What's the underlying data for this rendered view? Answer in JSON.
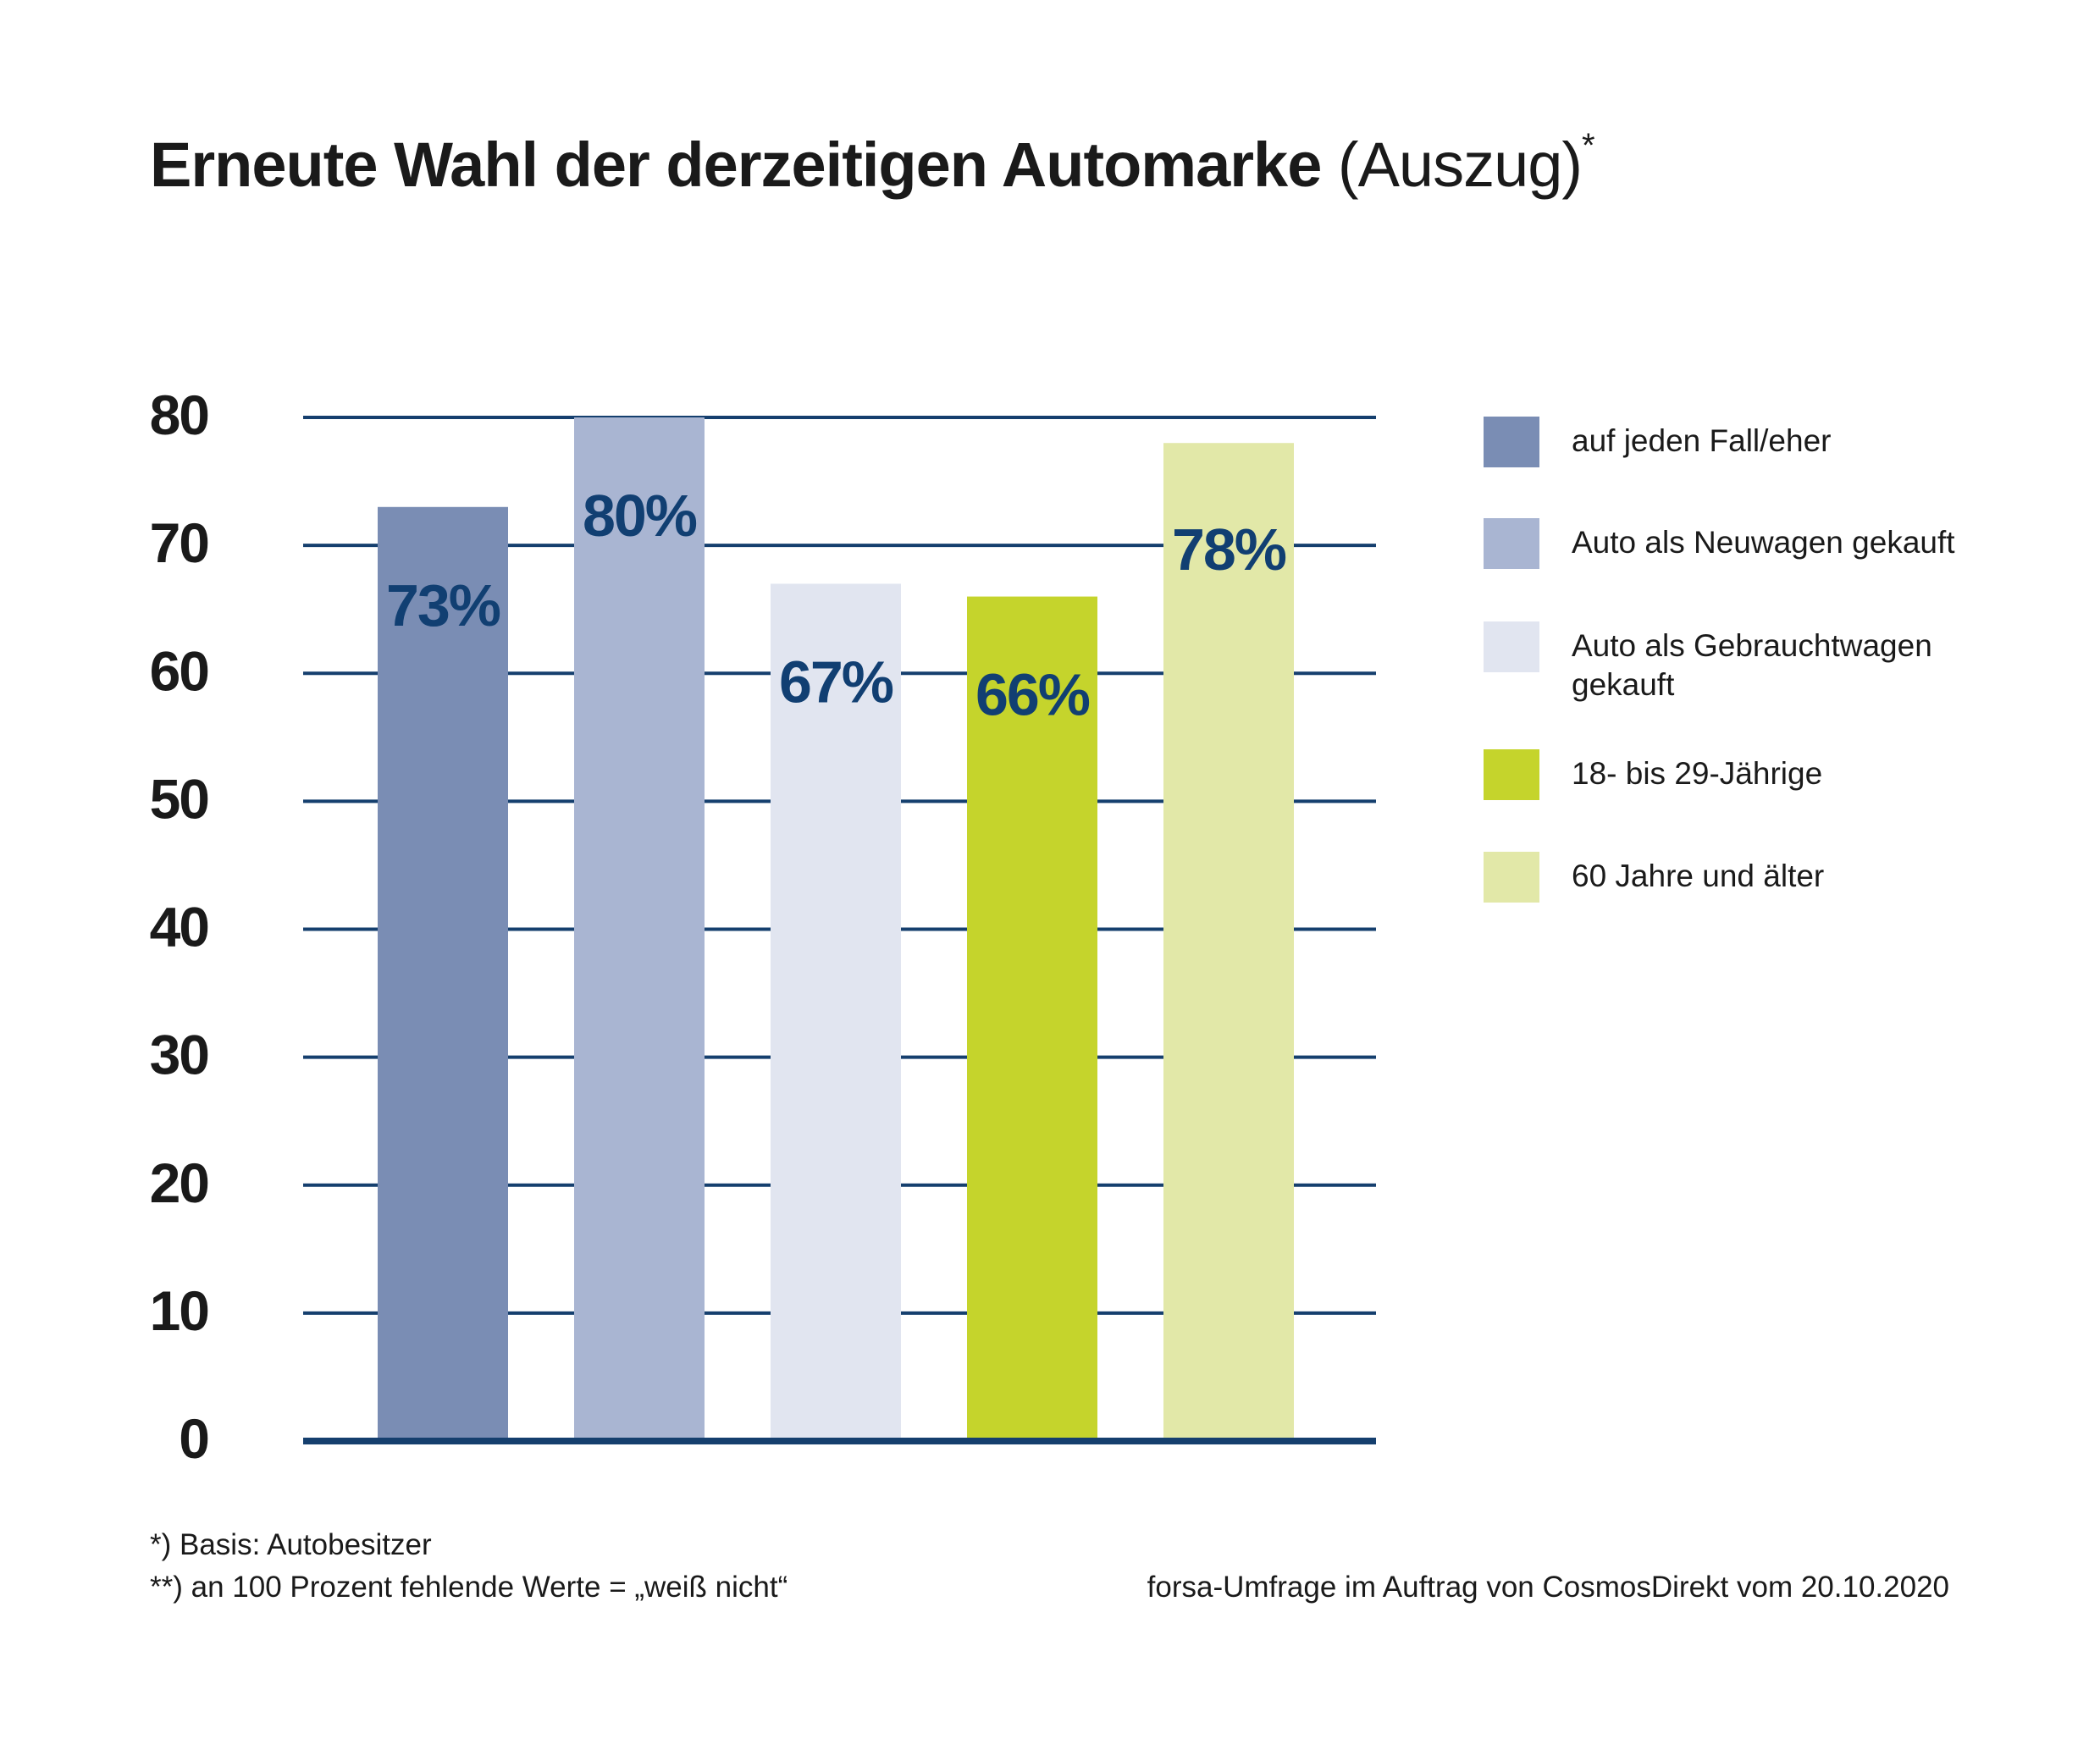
{
  "title": {
    "main": "Erneute Wahl der derzeitigen Automarke",
    "sub": "(Auszug)",
    "star": "*"
  },
  "chart_data": {
    "type": "bar",
    "y_ticks": [
      "80",
      "70",
      "60",
      "50",
      "40",
      "30",
      "20",
      "10",
      "0"
    ],
    "ylim": [
      0,
      80
    ],
    "grid": true,
    "legend_position": "right",
    "categories": [
      "auf jeden Fall/eher",
      "Auto als Neuwagen gekauft",
      "Auto als Gebrauchtwagen gekauft",
      "18- bis 29-Jährige",
      "60 Jahre und älter"
    ],
    "values": [
      73,
      80,
      67,
      66,
      78
    ],
    "data_labels": [
      "73%",
      "80%",
      "67%",
      "66%",
      "78%"
    ],
    "colors": [
      "#7a8db4",
      "#a9b5d2",
      "#e1e5f0",
      "#c5d42c",
      "#e2e8a8"
    ],
    "gridline_color": "#153f6e",
    "label_color": "#113f72"
  },
  "legend": {
    "items": [
      {
        "label": "auf jeden Fall/eher",
        "color": "#7a8db4"
      },
      {
        "label": "Auto als Neuwagen gekauft",
        "color": "#a9b5d2"
      },
      {
        "label": "Auto als Gebrauchtwagen gekauft",
        "color": "#e1e5f0"
      },
      {
        "label": "18- bis 29-Jährige",
        "color": "#c5d42c"
      },
      {
        "label": "60 Jahre und älter",
        "color": "#e2e8a8"
      }
    ]
  },
  "footnotes": {
    "line1": "*) Basis: Autobesitzer",
    "line2": "**) an 100 Prozent fehlende Werte = „weiß nicht“"
  },
  "source": "forsa-Umfrage im Auftrag von CosmosDirekt vom 20.10.2020"
}
